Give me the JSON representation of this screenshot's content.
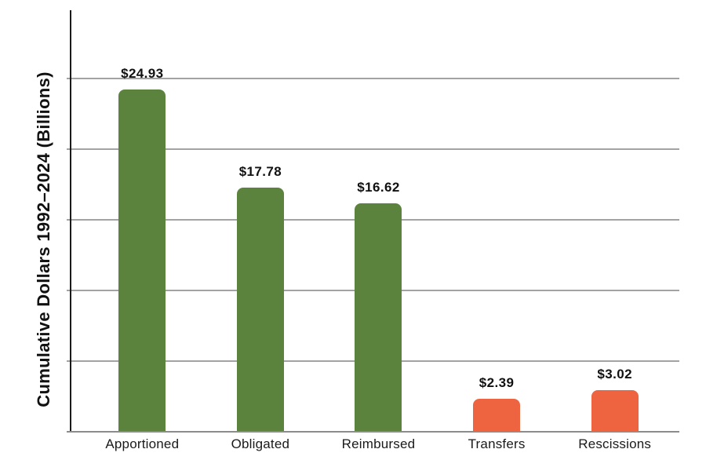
{
  "chart_data": {
    "type": "bar",
    "title": "",
    "xlabel": "",
    "ylabel": "Cumulative Dollars 1992–2024 (Billions)",
    "categories": [
      "Apportioned",
      "Obligated",
      "Reimbursed",
      "Transfers",
      "Rescissions"
    ],
    "values": [
      24.93,
      17.78,
      16.62,
      2.39,
      3.02
    ],
    "value_labels": [
      "$24.93",
      "$17.78",
      "$16.62",
      "$2.39",
      "$3.02"
    ],
    "bar_colors": [
      "#5B833D",
      "#5B833D",
      "#5B833D",
      "#EE6340",
      "#EE6340"
    ],
    "ylim": [
      0,
      30.7
    ],
    "y_tick_labels_shown": false,
    "gridline_count": 5,
    "grid": "horizontal",
    "legend": "none",
    "colors": {
      "green_bar": "#5B833D",
      "orange_bar": "#EE6340",
      "gridline": "#A3A3A3",
      "axis_spine": "#1A1A1A",
      "bottom_axis": "#8C8C8C",
      "text": "#111111"
    }
  }
}
